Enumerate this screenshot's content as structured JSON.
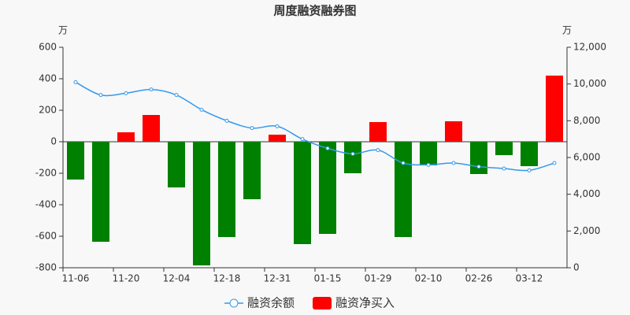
{
  "chart_data": {
    "type": "bar_line",
    "title": "周度融资融券图",
    "y_unit": "万",
    "y2_unit": "万",
    "categories": [
      "11-06",
      null,
      "11-20",
      null,
      "12-04",
      null,
      "12-18",
      null,
      "12-31",
      null,
      "01-15",
      null,
      "01-29",
      null,
      "02-10",
      null,
      "02-26",
      null,
      "03-12",
      null
    ],
    "series": [
      {
        "name": "融资余额",
        "type": "line",
        "axis": "y2",
        "color": "#3399ee",
        "values": [
          10100,
          9400,
          9500,
          9700,
          9400,
          8600,
          8000,
          7600,
          7700,
          7000,
          6500,
          6200,
          6400,
          5700,
          5600,
          5700,
          5500,
          5400,
          5300,
          5700
        ]
      },
      {
        "name": "融资净买入",
        "type": "bar",
        "color": "#ff0000",
        "negative_color": "#008000",
        "values": [
          -240,
          -635,
          60,
          170,
          -290,
          -785,
          -605,
          -365,
          45,
          -650,
          -585,
          -200,
          125,
          -605,
          -150,
          130,
          -205,
          -85,
          -155,
          420
        ]
      }
    ],
    "ylim": [
      -800,
      600
    ],
    "yticks": [
      -800,
      -600,
      -400,
      -200,
      0,
      200,
      400,
      600
    ],
    "y2lim": [
      0,
      12000
    ],
    "y2ticks": [
      0,
      {
        "value": 2000,
        "label": "2,000"
      },
      {
        "value": 4000,
        "label": "4,000"
      },
      {
        "value": 6000,
        "label": "6,000"
      },
      {
        "value": 8000,
        "label": "8,000"
      },
      {
        "value": 10000,
        "label": "10,000"
      },
      {
        "value": 12000,
        "label": "12,000"
      }
    ]
  }
}
